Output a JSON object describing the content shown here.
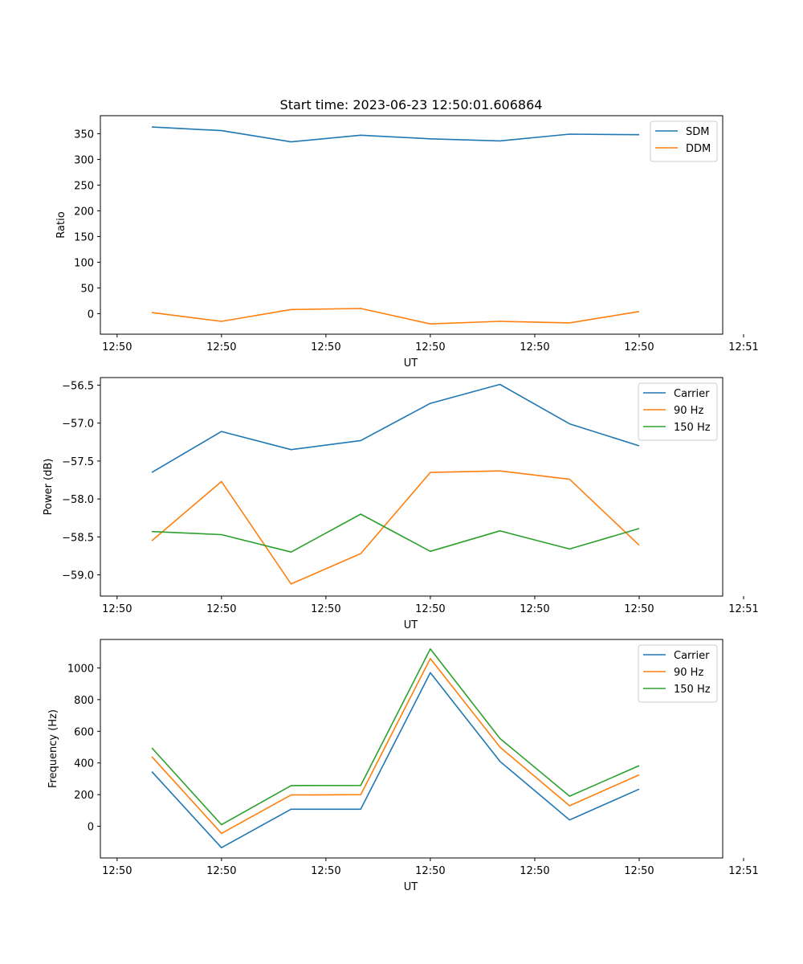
{
  "title": "Start time: 2023-06-23 12:50:01.606864",
  "colors": {
    "blue": "#1f77b4",
    "orange": "#ff7f0e",
    "green": "#2ca02c"
  },
  "chart_data": [
    {
      "type": "line",
      "title": "Start time: 2023-06-23 12:50:01.606864",
      "xlabel": "UT",
      "ylabel": "Ratio",
      "x": [
        1,
        2,
        3,
        4,
        5,
        6,
        7,
        8
      ],
      "xlim": [
        0.26,
        9.2
      ],
      "xticks": [
        {
          "value": 0.5,
          "label": "12:50"
        },
        {
          "value": 2.0,
          "label": "12:50"
        },
        {
          "value": 3.5,
          "label": "12:50"
        },
        {
          "value": 5.0,
          "label": "12:50"
        },
        {
          "value": 6.5,
          "label": "12:50"
        },
        {
          "value": 8.0,
          "label": "12:50"
        },
        {
          "value": 9.5,
          "label": "12:51"
        }
      ],
      "ylim": [
        -40,
        385
      ],
      "yticks": [
        0,
        50,
        100,
        150,
        200,
        250,
        300,
        350
      ],
      "yticklabels": [
        "0",
        "50",
        "100",
        "150",
        "200",
        "250",
        "300",
        "350"
      ],
      "legend": "top-right",
      "series": [
        {
          "name": "SDM",
          "color": "#1f77b4",
          "values": [
            363,
            356,
            334,
            347,
            340,
            336,
            349,
            348
          ]
        },
        {
          "name": "DDM",
          "color": "#ff7f0e",
          "values": [
            2,
            -15,
            8,
            10,
            -20,
            -15,
            -18,
            4
          ]
        }
      ]
    },
    {
      "type": "line",
      "xlabel": "UT",
      "ylabel": "Power (dB)",
      "x": [
        1,
        2,
        3,
        4,
        5,
        6,
        7,
        8
      ],
      "xlim": [
        0.26,
        9.2
      ],
      "xticks": [
        {
          "value": 0.5,
          "label": "12:50"
        },
        {
          "value": 2.0,
          "label": "12:50"
        },
        {
          "value": 3.5,
          "label": "12:50"
        },
        {
          "value": 5.0,
          "label": "12:50"
        },
        {
          "value": 6.5,
          "label": "12:50"
        },
        {
          "value": 8.0,
          "label": "12:50"
        },
        {
          "value": 9.5,
          "label": "12:51"
        }
      ],
      "ylim": [
        -59.28,
        -56.4
      ],
      "yticks": [
        -59.0,
        -58.5,
        -58.0,
        -57.5,
        -57.0,
        -56.5
      ],
      "yticklabels": [
        "−59.0",
        "−58.5",
        "−58.0",
        "−57.5",
        "−57.0",
        "−56.5"
      ],
      "legend": "top-right",
      "series": [
        {
          "name": "Carrier",
          "color": "#1f77b4",
          "values": [
            -57.65,
            -57.11,
            -57.35,
            -57.23,
            -56.74,
            -56.49,
            -57.01,
            -57.3
          ]
        },
        {
          "name": "90 Hz",
          "color": "#ff7f0e",
          "values": [
            -58.55,
            -57.77,
            -59.12,
            -58.72,
            -57.65,
            -57.63,
            -57.74,
            -58.61
          ]
        },
        {
          "name": "150 Hz",
          "color": "#2ca02c",
          "values": [
            -58.43,
            -58.47,
            -58.7,
            -58.2,
            -58.69,
            -58.42,
            -58.66,
            -58.39
          ]
        }
      ]
    },
    {
      "type": "line",
      "xlabel": "UT",
      "ylabel": "Frequency (Hz)",
      "x": [
        1,
        2,
        3,
        4,
        5,
        6,
        7,
        8
      ],
      "xlim": [
        0.26,
        9.2
      ],
      "xticks": [
        {
          "value": 0.5,
          "label": "12:50"
        },
        {
          "value": 2.0,
          "label": "12:50"
        },
        {
          "value": 3.5,
          "label": "12:50"
        },
        {
          "value": 5.0,
          "label": "12:50"
        },
        {
          "value": 6.5,
          "label": "12:50"
        },
        {
          "value": 8.0,
          "label": "12:50"
        },
        {
          "value": 9.5,
          "label": "12:51"
        }
      ],
      "ylim": [
        -200,
        1180
      ],
      "yticks": [
        0,
        200,
        400,
        600,
        800,
        1000
      ],
      "yticklabels": [
        "0",
        "200",
        "400",
        "600",
        "800",
        "1000"
      ],
      "legend": "top-right",
      "series": [
        {
          "name": "Carrier",
          "color": "#1f77b4",
          "values": [
            345,
            -135,
            108,
            108,
            970,
            410,
            40,
            235
          ]
        },
        {
          "name": "90 Hz",
          "color": "#ff7f0e",
          "values": [
            440,
            -45,
            198,
            200,
            1060,
            500,
            130,
            325
          ]
        },
        {
          "name": "150 Hz",
          "color": "#2ca02c",
          "values": [
            495,
            10,
            257,
            258,
            1120,
            555,
            190,
            383
          ]
        }
      ]
    }
  ]
}
